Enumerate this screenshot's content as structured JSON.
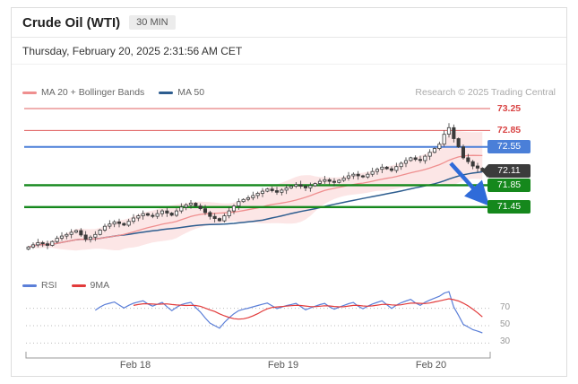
{
  "header": {
    "title": "Crude Oil (WTI)",
    "timeframe": "30 MIN",
    "datetime": "Thursday, February 20, 2025 2:31:56 AM CET"
  },
  "legend": {
    "ma20_label": "MA 20 + Bollinger Bands",
    "ma50_label": "MA 50",
    "research_note": "Research © 2025 Trading Central"
  },
  "rsi_legend": {
    "rsi_label": "RSI",
    "ma9_label": "9MA"
  },
  "price_levels": [
    {
      "label": "73.25",
      "price": 73.25,
      "kind": "resistance"
    },
    {
      "label": "72.85",
      "price": 72.85,
      "kind": "resistance"
    },
    {
      "label": "72.55",
      "price": 72.55,
      "kind": "pivot"
    },
    {
      "label": "72.11",
      "price": 72.11,
      "kind": "last"
    },
    {
      "label": "71.85",
      "price": 71.85,
      "kind": "support"
    },
    {
      "label": "71.45",
      "price": 71.45,
      "kind": "support"
    }
  ],
  "x_axis": {
    "labels": [
      "Feb 18",
      "Feb 19",
      "Feb 20"
    ]
  },
  "rsi_axis": {
    "labels": [
      "70",
      "50",
      "30"
    ],
    "values": [
      70,
      50,
      30
    ]
  },
  "colors": {
    "resistance_red": "#e06060",
    "pivot_blue": "#4a7fd8",
    "support_green": "#15881c",
    "last_price_bg": "#3c3c3c",
    "ma20_pink": "#ef8f8f",
    "band_fill": "rgba(244,166,166,0.28)",
    "ma50_navy": "#2d5d8f",
    "candle_dark": "#3a3a3a",
    "rsi_blue": "#5b7fd8",
    "rsi_ma_red": "#e23b3b",
    "arrow_blue": "#2f6bd9",
    "grid_gray": "#bbbbbb",
    "axis_gray": "#999999"
  },
  "chart_data": {
    "type": "candlestick",
    "title": "Crude Oil (WTI) 30 MIN",
    "interval": "30 MIN",
    "last_price": 72.11,
    "levels": {
      "resistances": [
        73.25,
        72.85
      ],
      "pivot": 72.55,
      "supports": [
        71.85,
        71.45
      ]
    },
    "ylim": [
      70.3,
      73.45
    ],
    "x_ticks": [
      "Feb 18",
      "Feb 19",
      "Feb 20"
    ],
    "indicators": [
      "MA 20",
      "Bollinger Bands (20,2)",
      "MA 50",
      "RSI (14)",
      "9MA of RSI"
    ],
    "rsi_gridlines": [
      70,
      50,
      30
    ],
    "forecast_arrow": {
      "direction": "down-right",
      "from_price": 72.25,
      "to_price": 71.58
    },
    "open_first": 70.68,
    "closes": [
      70.72,
      70.76,
      70.8,
      70.78,
      70.75,
      70.82,
      70.88,
      70.92,
      70.95,
      70.99,
      71.02,
      70.94,
      70.86,
      70.9,
      70.95,
      71.03,
      71.1,
      71.14,
      71.18,
      71.15,
      71.12,
      71.19,
      71.25,
      71.29,
      71.33,
      71.3,
      71.28,
      71.33,
      71.38,
      71.34,
      71.3,
      71.38,
      71.45,
      71.49,
      71.52,
      71.47,
      71.42,
      71.35,
      71.28,
      71.24,
      71.2,
      71.29,
      71.38,
      71.47,
      71.55,
      71.59,
      71.62,
      71.66,
      71.7,
      71.74,
      71.78,
      71.75,
      71.72,
      71.76,
      71.8,
      71.83,
      71.86,
      71.83,
      71.8,
      71.84,
      71.88,
      71.92,
      71.95,
      71.92,
      71.9,
      71.94,
      71.98,
      72.02,
      72.05,
      72.02,
      72.0,
      72.05,
      72.1,
      72.14,
      72.18,
      72.15,
      72.12,
      72.19,
      72.25,
      72.3,
      72.35,
      72.32,
      72.3,
      72.38,
      72.45,
      72.52,
      72.6,
      72.78,
      72.9,
      72.7,
      72.55,
      72.35,
      72.28,
      72.2,
      72.16,
      72.11
    ]
  }
}
